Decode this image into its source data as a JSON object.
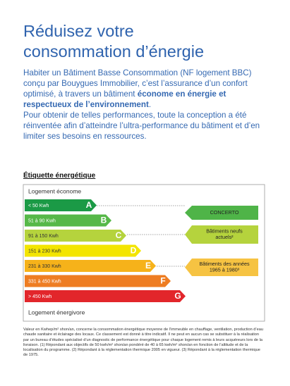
{
  "title": [
    "Réduisez votre",
    "consommation d’énergie"
  ],
  "intro": {
    "text": "Habiter un Bâtiment Basse Consommation (NF logement BBC) conçu par Bouygues Immobilier, c’est l’assurance d’un confort optimisé, à travers un bâtiment ",
    "bold": "économe en énergie et respectueux de l’environnement",
    "end": "."
  },
  "paragraph2": "Pour obtenir de telles performances, toute la conception a été réinventée afin d’atteindre l’ultra-performance du bâtiment et d’en limiter ses besoins en ressources.",
  "label": {
    "title": "Étiquette énergétique",
    "top": "Logement économe",
    "bottom": "Logement énergivore",
    "classes": [
      {
        "range": "< 50 Kwh",
        "letter": "A",
        "color": "#1b9a46"
      },
      {
        "range": "51 à 90 Kwh",
        "letter": "B",
        "color": "#56b848"
      },
      {
        "range": "91 à 150 Kwh",
        "letter": "C",
        "color": "#b5d33d"
      },
      {
        "range": "151 à 230 Kwh",
        "letter": "D",
        "color": "#f3e500"
      },
      {
        "range": "231 à 330 Kwh",
        "letter": "E",
        "color": "#f6b21a"
      },
      {
        "range": "331 à 450 Kwh",
        "letter": "F",
        "color": "#ee7d22"
      },
      {
        "range": "> 450 Kwh",
        "letter": "G",
        "color": "#e2262b"
      }
    ],
    "markers": [
      {
        "lines": [
          "CONCERTO"
        ],
        "color": "#4fb448"
      },
      {
        "lines": [
          "Bâtiments neufs",
          "actuels²"
        ],
        "color": "#b5d33d"
      },
      {
        "lines": [
          "Bâtiments des années",
          "1965 à 1980³"
        ],
        "color": "#f6c342"
      }
    ]
  },
  "footnote": "Valeur en Kwhep/m² shon/an, concerne la consommation énergétique moyenne de l’immeuble en chauffage, ventilation, production d’eau chaude sanitaire et éclairage des locaux. Ce classement est donné à titre indicatif. Il ne peut en aucun cas se substituer à la réalisation par un bureau d’études spécialisé d’un diagnostic de performance énergétique pour chaque logement remis à leurs acquéreurs lors de la livraison. (1) Répondant aux objectifs de 50 kwh/m² shon/an pondéré de 40 à 65 kwh/m² shon/an en fonction de l’altitude et de la localisation du programme. (2) Répondant à la réglementation thermique 2005 en vigueur. (3) Répondant à la réglementation thermique de 1975."
}
